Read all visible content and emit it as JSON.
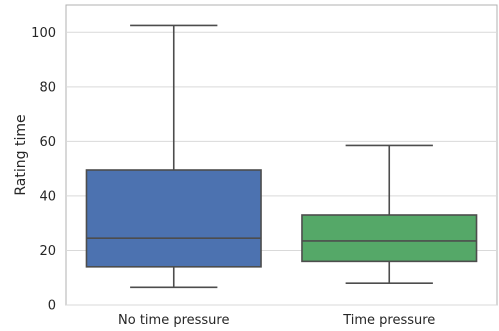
{
  "chart_data": {
    "type": "box",
    "title": "",
    "xlabel": "",
    "ylabel": "Rating time",
    "ylim": [
      0,
      110
    ],
    "yticks": [
      0,
      20,
      40,
      60,
      80,
      100
    ],
    "grid": true,
    "categories": [
      "No time pressure",
      "Time pressure"
    ],
    "boxes": [
      {
        "name": "No time pressure",
        "whisker_low": 6.5,
        "q1": 14,
        "median": 24.5,
        "q3": 49.5,
        "whisker_high": 102.5,
        "color": "#4c72b0"
      },
      {
        "name": "Time pressure",
        "whisker_low": 8,
        "q1": 16,
        "median": 23.5,
        "q3": 33,
        "whisker_high": 58.5,
        "color": "#55a868"
      }
    ]
  }
}
